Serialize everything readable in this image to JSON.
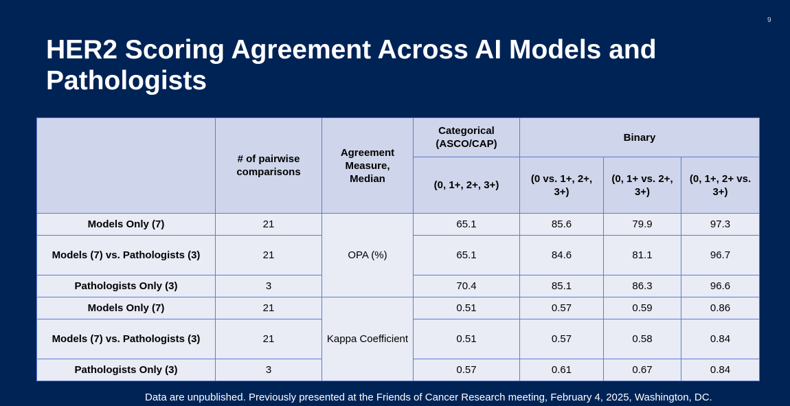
{
  "slide": {
    "number": "9",
    "title": "HER2 Scoring Agreement Across AI Models and Pathologists",
    "footnote": "Data are unpublished. Previously presented at the Friends of Cancer Research meeting, February 4, 2025, Washington, DC."
  },
  "table": {
    "header": {
      "pairwise": "# of pairwise comparisons",
      "measure": "Agreement Measure, Median",
      "categorical": "Categorical (ASCO/CAP)",
      "binary": "Binary",
      "categorical_sub": "(0, 1+, 2+, 3+)",
      "binary_sub": [
        "(0 vs. 1+, 2+, 3+)",
        "(0, 1+ vs. 2+, 3+)",
        "(0, 1+, 2+ vs. 3+)"
      ]
    },
    "groups": [
      {
        "measure": "OPA (%)",
        "rows": [
          {
            "label": "Models Only (7)",
            "pairwise": "21",
            "categorical": "65.1",
            "binary": [
              "85.6",
              "79.9",
              "97.3"
            ]
          },
          {
            "label": "Models (7) vs. Pathologists (3)",
            "pairwise": "21",
            "categorical": "65.1",
            "binary": [
              "84.6",
              "81.1",
              "96.7"
            ]
          },
          {
            "label": "Pathologists Only (3)",
            "pairwise": "3",
            "categorical": "70.4",
            "binary": [
              "85.1",
              "86.3",
              "96.6"
            ]
          }
        ]
      },
      {
        "measure": "Kappa Coefficient",
        "rows": [
          {
            "label": "Models Only (7)",
            "pairwise": "21",
            "categorical": "0.51",
            "binary": [
              "0.57",
              "0.59",
              "0.86"
            ]
          },
          {
            "label": "Models (7) vs. Pathologists (3)",
            "pairwise": "21",
            "categorical": "0.51",
            "binary": [
              "0.57",
              "0.58",
              "0.84"
            ]
          },
          {
            "label": "Pathologists Only (3)",
            "pairwise": "3",
            "categorical": "0.57",
            "binary": [
              "0.61",
              "0.67",
              "0.84"
            ]
          }
        ]
      }
    ]
  }
}
